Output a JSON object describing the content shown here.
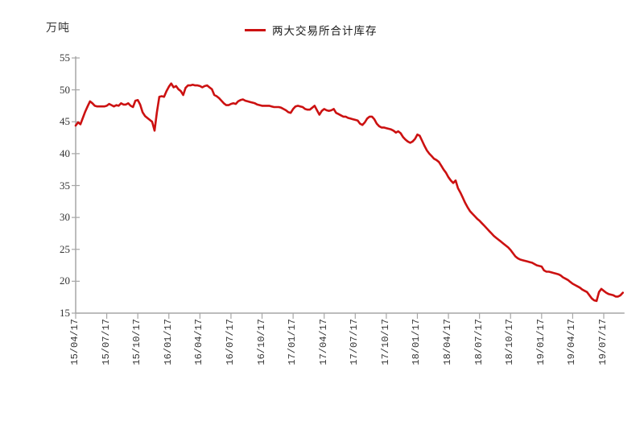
{
  "page": {
    "background": "#FFFFFF"
  },
  "chart_data": {
    "type": "line",
    "title": "",
    "ylabel_unit": "万吨",
    "grid": false,
    "legend_position": "top-center",
    "legend": [
      {
        "name": "两大交易所合计库存",
        "color": "#CC1111"
      }
    ],
    "ylim": [
      15,
      55
    ],
    "y_ticks": [
      15,
      20,
      25,
      30,
      35,
      40,
      45,
      50,
      55
    ],
    "x_tick_labels": [
      "15/04/17",
      "15/07/17",
      "15/10/17",
      "16/01/17",
      "16/04/17",
      "16/07/17",
      "16/10/17",
      "17/01/17",
      "17/04/17",
      "17/07/17",
      "17/10/17",
      "18/01/17",
      "18/04/17",
      "18/07/17",
      "18/10/17",
      "19/01/17",
      "19/04/17",
      "19/07/17"
    ],
    "points_per_x_tick": 13,
    "series": [
      {
        "name": "两大交易所合计库存",
        "color": "#CC1111",
        "values": [
          44.4,
          44.9,
          44.6,
          45.6,
          46.6,
          47.4,
          48.2,
          47.9,
          47.5,
          47.4,
          47.4,
          47.4,
          47.4,
          47.5,
          47.8,
          47.6,
          47.4,
          47.6,
          47.5,
          47.9,
          47.7,
          47.7,
          47.9,
          47.5,
          47.3,
          48.3,
          48.4,
          47.7,
          46.5,
          45.9,
          45.6,
          45.3,
          45.0,
          43.6,
          46.5,
          48.9,
          49.0,
          48.9,
          49.8,
          50.5,
          51.0,
          50.4,
          50.6,
          50.1,
          49.8,
          49.2,
          50.3,
          50.7,
          50.7,
          50.8,
          50.7,
          50.7,
          50.6,
          50.4,
          50.6,
          50.7,
          50.4,
          50.1,
          49.2,
          49.0,
          48.7,
          48.3,
          47.9,
          47.6,
          47.6,
          47.8,
          47.9,
          47.8,
          48.2,
          48.4,
          48.5,
          48.3,
          48.2,
          48.1,
          48.0,
          47.9,
          47.7,
          47.6,
          47.5,
          47.5,
          47.5,
          47.5,
          47.4,
          47.3,
          47.3,
          47.3,
          47.2,
          47.0,
          46.8,
          46.5,
          46.4,
          47.0,
          47.4,
          47.5,
          47.4,
          47.3,
          47.0,
          46.9,
          46.9,
          47.2,
          47.5,
          46.8,
          46.1,
          46.7,
          47.0,
          46.8,
          46.7,
          46.8,
          47.0,
          46.4,
          46.2,
          46.0,
          45.8,
          45.8,
          45.6,
          45.5,
          45.4,
          45.3,
          45.2,
          44.7,
          44.5,
          44.9,
          45.5,
          45.8,
          45.8,
          45.4,
          44.7,
          44.3,
          44.1,
          44.1,
          44.0,
          43.9,
          43.8,
          43.6,
          43.3,
          43.5,
          43.2,
          42.6,
          42.2,
          41.9,
          41.7,
          41.9,
          42.3,
          43.0,
          42.8,
          42.0,
          41.2,
          40.5,
          40.0,
          39.6,
          39.2,
          39.0,
          38.7,
          38.1,
          37.5,
          37.0,
          36.3,
          35.8,
          35.4,
          35.8,
          34.6,
          33.9,
          33.1,
          32.3,
          31.6,
          31.0,
          30.6,
          30.2,
          29.8,
          29.5,
          29.1,
          28.7,
          28.3,
          27.9,
          27.5,
          27.1,
          26.8,
          26.5,
          26.2,
          25.9,
          25.6,
          25.3,
          24.9,
          24.4,
          23.9,
          23.6,
          23.4,
          23.3,
          23.2,
          23.1,
          23.0,
          22.9,
          22.7,
          22.5,
          22.4,
          22.3,
          21.7,
          21.5,
          21.5,
          21.4,
          21.3,
          21.2,
          21.1,
          20.9,
          20.6,
          20.4,
          20.2,
          19.9,
          19.6,
          19.4,
          19.2,
          19.0,
          18.7,
          18.5,
          18.3,
          17.8,
          17.3,
          17.0,
          16.9,
          18.3,
          18.8,
          18.5,
          18.2,
          18.0,
          17.9,
          17.8,
          17.6,
          17.6,
          17.8,
          18.2
        ]
      }
    ],
    "colors": {
      "line": "#CC1111",
      "axis": "#A6A6A6",
      "tick_label": "#333333",
      "background": "#FFFFFF"
    }
  }
}
